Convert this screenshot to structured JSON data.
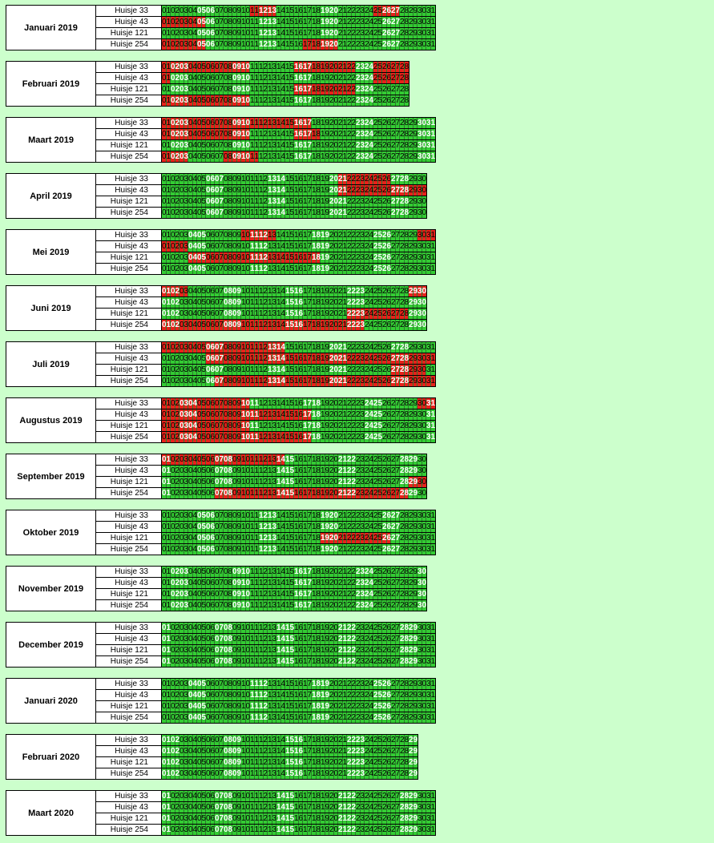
{
  "houses": [
    "Huisje 33",
    "Huisje 43",
    "Huisje 121",
    "Huisje 254"
  ],
  "months": [
    {
      "label": "Januari 2019",
      "days": 31
    },
    {
      "label": "Februari 2019",
      "days": 28
    },
    {
      "label": "Maart 2019",
      "days": 31
    },
    {
      "label": "April 2019",
      "days": 30
    },
    {
      "label": "Mei 2019",
      "days": 31
    },
    {
      "label": "Juni 2019",
      "days": 30
    },
    {
      "label": "Juli 2019",
      "days": 31
    },
    {
      "label": "Augustus 2019",
      "days": 31
    },
    {
      "label": "September 2019",
      "days": 30
    },
    {
      "label": "Oktober 2019",
      "days": 31
    },
    {
      "label": "November 2019",
      "days": 30
    },
    {
      "label": "December 2019",
      "days": 31
    },
    {
      "label": "Januari 2020",
      "days": 31
    },
    {
      "label": "Februari 2020",
      "days": 29
    },
    {
      "label": "Maart 2020",
      "days": 31
    }
  ],
  "booked_days": {
    "Januari 2019": {
      "Huisje 33": [
        11,
        12,
        13,
        25,
        26,
        27
      ],
      "Huisje 43": [
        1,
        2,
        3,
        4,
        5
      ],
      "Huisje 121": [],
      "Huisje 254": [
        1,
        2,
        3,
        4,
        5,
        17,
        18,
        19,
        20
      ]
    },
    "Februari 2019": {
      "Huisje 33": [
        1,
        2,
        3,
        4,
        5,
        6,
        7,
        8,
        9,
        10,
        16,
        17,
        18,
        19,
        20,
        21,
        22,
        25,
        26,
        27,
        28
      ],
      "Huisje 43": [
        1,
        25,
        26,
        27,
        28
      ],
      "Huisje 121": [
        16,
        17,
        18,
        19,
        20,
        21,
        22
      ],
      "Huisje 254": [
        1,
        2,
        3,
        4,
        5,
        6,
        7,
        8,
        9,
        10
      ]
    },
    "Maart 2019": {
      "Huisje 33": [
        1,
        2,
        3,
        4,
        5,
        6,
        7,
        8,
        9,
        10,
        11,
        12,
        13,
        14,
        15,
        16,
        17
      ],
      "Huisje 43": [
        1,
        2,
        3,
        4,
        5,
        6,
        7,
        8,
        9,
        10,
        16,
        17,
        18
      ],
      "Huisje 121": [],
      "Huisje 254": [
        1,
        2,
        3,
        8,
        9,
        10,
        11
      ]
    },
    "April 2019": {
      "Huisje 33": [
        21,
        22,
        23,
        24,
        25,
        26
      ],
      "Huisje 43": [
        21,
        22,
        23,
        24,
        25,
        26,
        27,
        28,
        29,
        30
      ],
      "Huisje 121": [],
      "Huisje 254": []
    },
    "Mei 2019": {
      "Huisje 33": [
        10,
        11,
        12,
        13,
        30,
        31
      ],
      "Huisje 43": [
        1,
        2,
        3
      ],
      "Huisje 121": [
        4,
        5,
        6,
        7,
        8,
        9,
        10,
        11,
        12,
        13,
        14,
        15,
        16,
        17,
        18
      ],
      "Huisje 254": []
    },
    "Juni 2019": {
      "Huisje 33": [
        1,
        2,
        3,
        29,
        30
      ],
      "Huisje 43": [],
      "Huisje 121": [
        22,
        23,
        24,
        25,
        26,
        27,
        28
      ],
      "Huisje 254": [
        1,
        2,
        3,
        4,
        5,
        6,
        7,
        8,
        9,
        10,
        11,
        12,
        13,
        14,
        15,
        16,
        17,
        18,
        19,
        20,
        21,
        22,
        23
      ]
    },
    "Juli 2019": {
      "Huisje 33": [
        1,
        2,
        3,
        4,
        5,
        6,
        7,
        8,
        9,
        10,
        11,
        12,
        13,
        14
      ],
      "Huisje 43": [
        6,
        7,
        8,
        9,
        10,
        11,
        12,
        13,
        14,
        15,
        16,
        17,
        18,
        19,
        20,
        21,
        22,
        23,
        24,
        25,
        26,
        27,
        28,
        29,
        30,
        31
      ],
      "Huisje 121": [
        27,
        28,
        29,
        30
      ],
      "Huisje 254": [
        7,
        8,
        9,
        10,
        11,
        12,
        13,
        14,
        15,
        16,
        17,
        18,
        19,
        20,
        21,
        22,
        23,
        24,
        25,
        26,
        27,
        28,
        29,
        30,
        31
      ]
    },
    "Augustus 2019": {
      "Huisje 33": [
        1,
        2,
        3,
        4,
        5,
        6,
        7,
        8,
        9,
        10,
        30,
        31
      ],
      "Huisje 43": [
        1,
        2,
        3,
        4,
        5,
        6,
        7,
        8,
        9,
        10,
        11,
        12,
        13,
        14,
        15,
        16,
        17
      ],
      "Huisje 121": [
        1,
        2,
        3,
        4,
        5,
        6,
        7,
        8,
        9,
        10
      ],
      "Huisje 254": [
        1,
        2,
        3,
        4,
        5,
        6,
        7,
        8,
        9,
        10,
        11,
        12,
        13,
        14,
        15,
        16,
        17
      ]
    },
    "September 2019": {
      "Huisje 33": [
        1,
        2,
        3,
        4,
        5,
        6,
        7,
        8,
        9,
        10,
        11,
        12,
        13,
        14
      ],
      "Huisje 43": [],
      "Huisje 121": [
        29,
        30
      ],
      "Huisje 254": [
        7,
        8,
        9,
        10,
        11,
        12,
        13,
        14,
        15,
        16,
        17,
        18,
        19,
        20,
        21,
        22,
        23,
        24,
        25,
        26,
        27,
        28
      ]
    },
    "Oktober 2019": {
      "Huisje 33": [],
      "Huisje 43": [],
      "Huisje 121": [
        19,
        20,
        21,
        22,
        23,
        24,
        25,
        26
      ],
      "Huisje 254": []
    },
    "November 2019": {
      "Huisje 33": [],
      "Huisje 43": [],
      "Huisje 121": [],
      "Huisje 254": []
    },
    "December 2019": {
      "Huisje 33": [],
      "Huisje 43": [],
      "Huisje 121": [],
      "Huisje 254": []
    },
    "Januari 2020": {
      "Huisje 33": [],
      "Huisje 43": [],
      "Huisje 121": [],
      "Huisje 254": []
    },
    "Februari 2020": {
      "Huisje 33": [],
      "Huisje 43": [],
      "Huisje 121": [],
      "Huisje 254": []
    },
    "Maart 2020": {
      "Huisje 33": [],
      "Huisje 43": [],
      "Huisje 121": [],
      "Huisje 254": []
    }
  },
  "bold_days": {
    "Januari 2019": [
      5,
      6,
      12,
      13,
      19,
      20,
      26,
      27
    ],
    "Februari 2019": [
      2,
      3,
      9,
      10,
      16,
      17,
      23,
      24
    ],
    "Maart 2019": [
      2,
      3,
      9,
      10,
      16,
      17,
      23,
      24,
      30,
      31
    ],
    "April 2019": [
      6,
      7,
      13,
      14,
      20,
      21,
      27,
      28
    ],
    "Mei 2019": [
      4,
      5,
      11,
      12,
      18,
      19,
      25,
      26
    ],
    "Juni 2019": [
      1,
      2,
      8,
      9,
      15,
      16,
      22,
      23,
      29,
      30
    ],
    "Juli 2019": [
      6,
      7,
      13,
      14,
      20,
      21,
      27,
      28
    ],
    "Augustus 2019": [
      3,
      4,
      10,
      11,
      17,
      18,
      24,
      25,
      31
    ],
    "September 2019": [
      1,
      7,
      8,
      14,
      15,
      21,
      22,
      28,
      29
    ],
    "Oktober 2019": [
      5,
      6,
      12,
      13,
      19,
      20,
      26,
      27
    ],
    "November 2019": [
      2,
      3,
      9,
      10,
      16,
      17,
      23,
      24,
      30
    ],
    "December 2019": [
      1,
      7,
      8,
      14,
      15,
      21,
      22,
      28,
      29
    ],
    "Januari 2020": [
      4,
      5,
      11,
      12,
      18,
      19,
      25,
      26
    ],
    "Februari 2020": [
      1,
      2,
      8,
      9,
      15,
      16,
      22,
      23,
      29
    ],
    "Maart 2020": [
      1,
      7,
      8,
      14,
      15,
      21,
      22,
      28,
      29
    ]
  },
  "colors": {
    "free": "#33cc33",
    "booked": "#e8211a",
    "background": "#ccffcc"
  }
}
